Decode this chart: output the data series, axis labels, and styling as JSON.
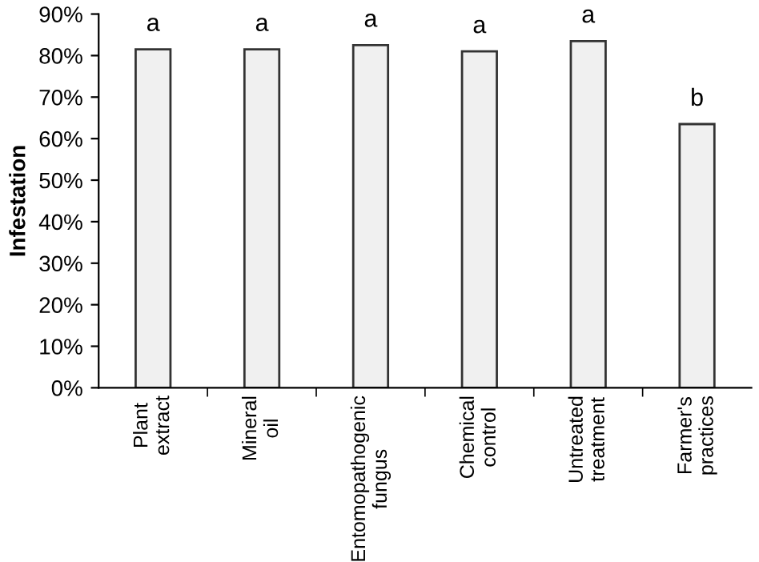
{
  "chart_data": {
    "type": "bar",
    "ylabel": "Infestation",
    "categories": [
      "Plant\nextract",
      "Mineral\noil",
      "Entomopathogenic\nfungus",
      "Chemical\ncontrol",
      "Untreated\ntreatment",
      "Farmer's\npractices"
    ],
    "values": [
      81.5,
      81.5,
      82.5,
      81,
      83.5,
      63.5
    ],
    "color": "#f0f0f0",
    "ylim": [
      0,
      90
    ],
    "yticks": [
      {
        "value": 0,
        "label": "0%"
      },
      {
        "value": 10,
        "label": "10%"
      },
      {
        "value": 20,
        "label": "20%"
      },
      {
        "value": 30,
        "label": "30%"
      },
      {
        "value": 40,
        "label": "40%"
      },
      {
        "value": 50,
        "label": "50%"
      },
      {
        "value": 60,
        "label": "60%"
      },
      {
        "value": 70,
        "label": "70%"
      },
      {
        "value": 80,
        "label": "80%"
      },
      {
        "value": 90,
        "label": "90%"
      }
    ],
    "grid": false,
    "annotations": [
      {
        "text": "a",
        "x": "Plant\nextract",
        "y": 81.5
      },
      {
        "text": "a",
        "x": "Mineral\noil",
        "y": 81.5
      },
      {
        "text": "a",
        "x": "Entomopathogenic\nfungus",
        "y": 82.5
      },
      {
        "text": "a",
        "x": "Chemical\ncontrol",
        "y": 81
      },
      {
        "text": "a",
        "x": "Untreated\ntreatment",
        "y": 83.5
      },
      {
        "text": "b",
        "x": "Farmer's\npractices",
        "y": 63.5
      }
    ]
  }
}
